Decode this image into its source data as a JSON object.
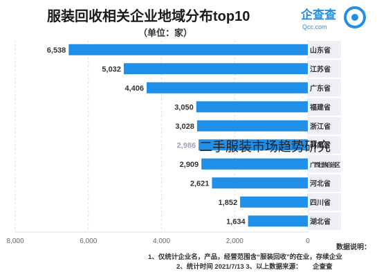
{
  "header": {
    "title": "服装回收相关企业地域分布top10",
    "unit": "（单位：家）",
    "brand": "企查查",
    "brand_sub": "Qcc.com"
  },
  "watermark": "二手服装市场趋势研究",
  "notes": {
    "heading": "数据说明：",
    "line1": "1、仅统计企业名，产品，经营范围含“服装回收”的在业，存续企业",
    "line2": "2、统计时间  2021/7/13        3、以上数据来源：",
    "line2_brand": "企查查"
  },
  "colors": {
    "bar": "#1f8fe8",
    "axis_text": "#666666",
    "grid": "#d9dde6",
    "label_bg": "#eef0f5"
  },
  "chart_data": {
    "type": "bar",
    "orientation": "horizontal",
    "x_reversed": true,
    "categories": [
      "山东省",
      "江苏省",
      "广东省",
      "福建省",
      "浙江省",
      "河南省",
      "广西壮族自治区",
      "河北省",
      "四川省",
      "湖北省"
    ],
    "values": [
      6538,
      5032,
      4406,
      3050,
      3028,
      2986,
      2909,
      2621,
      1852,
      1634
    ],
    "value_labels": [
      "6,538",
      "5,032",
      "4,406",
      "3,050",
      "3,028",
      "2,986",
      "2,909",
      "2,621",
      "1,852",
      "1,634"
    ],
    "x_ticks": [
      0,
      2000,
      4000,
      6000,
      8000
    ],
    "x_tick_labels": [
      "0",
      "2,000",
      "4,000",
      "6,000",
      "8,000"
    ],
    "xlim": [
      0,
      8000
    ]
  }
}
